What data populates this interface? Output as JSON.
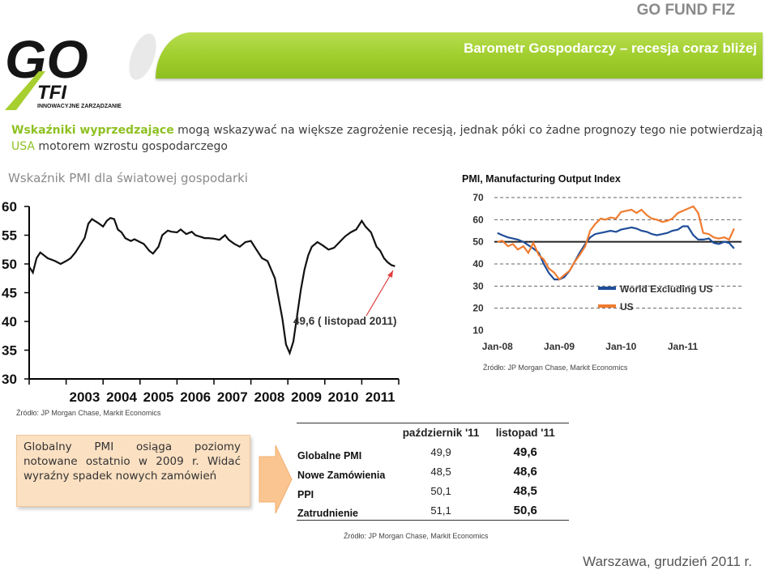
{
  "header": {
    "brand": "GO FUND FIZ",
    "banner_title": "Barometr Gospodarczy – recesja coraz bliżej"
  },
  "logo": {
    "main": "GO",
    "sub": "TFI",
    "tagline": "INNOWACYJNE ZARZĄDZANIE"
  },
  "intro": {
    "lead_highlight": "Wskaźniki wyprzedzające",
    "lead_rest": " mogą wskazywać na większe zagrożenie recesją, jednak póki co żadne prognozy tego nie potwierdzają ",
    "usa": "USA",
    "tail": " motorem wzrostu gospodarczego"
  },
  "subtitle": "Wskaźnik PMI dla światowej gospodarki",
  "chart_data": [
    {
      "type": "line",
      "xlabel": "",
      "ylabel": "",
      "ylim": [
        30,
        60
      ],
      "y_ticks": [
        "60",
        "55",
        "50",
        "45",
        "40",
        "35",
        "30"
      ],
      "x_ticks": [
        "2003",
        "2004",
        "2005",
        "2006",
        "2007",
        "2008",
        "2009",
        "2010",
        "2011"
      ],
      "annotation": "49,6 ( listopad 2011)",
      "source": "Źródło: JP Morgan Chase, Markit Economics",
      "series": [
        {
          "x": [
            2002.0,
            2002.1,
            2002.2,
            2002.3,
            2002.5,
            2002.7,
            2002.85,
            2003.0,
            2003.12,
            2003.25,
            2003.35,
            2003.5,
            2003.6,
            2003.7,
            2003.85,
            2004.0,
            2004.1,
            2004.2,
            2004.3,
            2004.4,
            2004.5,
            2004.6,
            2004.75,
            2004.85,
            2005.0,
            2005.1,
            2005.25,
            2005.35,
            2005.5,
            2005.6,
            2005.75,
            2005.85,
            2006.0,
            2006.1,
            2006.25,
            2006.4,
            2006.5,
            2006.6,
            2006.75,
            2006.85,
            2007.0,
            2007.15,
            2007.3,
            2007.4,
            2007.55,
            2007.7,
            2007.85,
            2008.0,
            2008.15,
            2008.3,
            2008.45,
            2008.55,
            2008.65,
            2008.75,
            2008.85,
            2008.95,
            2009.05,
            2009.15,
            2009.25,
            2009.35,
            2009.45,
            2009.55,
            2009.65,
            2009.8,
            2009.95,
            2010.1,
            2010.25,
            2010.4,
            2010.55,
            2010.7,
            2010.85,
            2011.0,
            2011.1,
            2011.25,
            2011.4,
            2011.5,
            2011.6,
            2011.7,
            2011.8,
            2011.9
          ],
          "y": [
            49.5,
            48.5,
            51,
            52,
            51,
            50.5,
            50,
            50.5,
            51,
            52,
            53,
            54.5,
            57,
            57.8,
            57.2,
            56.5,
            57.5,
            58,
            57.8,
            56,
            55.5,
            54.5,
            54,
            54.3,
            53.8,
            53.5,
            52.3,
            51.8,
            53,
            55,
            55.8,
            55.6,
            55.5,
            56,
            55.2,
            55.6,
            55,
            54.8,
            54.5,
            54.5,
            54.4,
            54.2,
            55,
            54.2,
            53.5,
            53,
            53.8,
            54,
            52.5,
            51,
            50.5,
            49,
            47.5,
            44,
            40.5,
            36,
            34.5,
            36.5,
            41,
            45.5,
            49,
            51.5,
            53,
            53.8,
            53.2,
            52.5,
            52.8,
            53.8,
            54.8,
            55.5,
            56,
            57.5,
            56.5,
            55.5,
            53,
            52.3,
            51,
            50.3,
            49.8,
            49.6
          ]
        }
      ]
    },
    {
      "type": "line",
      "title": "PMI, Manufacturing Output Index",
      "ylim": [
        10,
        70
      ],
      "y_ticks": [
        "70",
        "60",
        "50",
        "40",
        "30",
        "20",
        "10"
      ],
      "x_ticks": [
        "Jan-08",
        "Jan-09",
        "Jan-10",
        "Jan-11"
      ],
      "grid": "dashed horizontal",
      "reference_line": 50,
      "legend_position": "lower-right",
      "source": "Źródło: JP Morgan Chase, Markit Economics",
      "series": [
        {
          "name": "World Excluding US",
          "color": "#1f4e99",
          "x": [
            2008.0,
            2008.08,
            2008.17,
            2008.25,
            2008.33,
            2008.42,
            2008.5,
            2008.58,
            2008.67,
            2008.75,
            2008.83,
            2008.92,
            2009.0,
            2009.08,
            2009.17,
            2009.25,
            2009.33,
            2009.42,
            2009.5,
            2009.58,
            2009.67,
            2009.75,
            2009.83,
            2009.92,
            2010.0,
            2010.08,
            2010.17,
            2010.25,
            2010.33,
            2010.42,
            2010.5,
            2010.58,
            2010.67,
            2010.75,
            2010.83,
            2010.92,
            2011.0,
            2011.08,
            2011.17,
            2011.25,
            2011.33,
            2011.42,
            2011.5,
            2011.58,
            2011.67,
            2011.75,
            2011.83
          ],
          "y": [
            54,
            53,
            52,
            51.5,
            51,
            50,
            48.5,
            47,
            45,
            40,
            36,
            33,
            33,
            34,
            37,
            41,
            45,
            49,
            52,
            53.5,
            54,
            54.5,
            55,
            54.5,
            55.5,
            56,
            56.5,
            56,
            55,
            54.5,
            53.5,
            53,
            53.5,
            54,
            55,
            55.5,
            57,
            57,
            53,
            51,
            51,
            51.5,
            49.5,
            49,
            50,
            49.5,
            47
          ]
        },
        {
          "name": "US",
          "color": "#f07c30",
          "x": [
            2008.0,
            2008.08,
            2008.17,
            2008.25,
            2008.33,
            2008.42,
            2008.5,
            2008.58,
            2008.67,
            2008.75,
            2008.83,
            2008.92,
            2009.0,
            2009.08,
            2009.17,
            2009.25,
            2009.33,
            2009.42,
            2009.5,
            2009.58,
            2009.67,
            2009.75,
            2009.83,
            2009.92,
            2010.0,
            2010.08,
            2010.17,
            2010.25,
            2010.33,
            2010.42,
            2010.5,
            2010.58,
            2010.67,
            2010.75,
            2010.83,
            2010.92,
            2011.0,
            2011.08,
            2011.17,
            2011.25,
            2011.33,
            2011.42,
            2011.5,
            2011.58,
            2011.67,
            2011.75,
            2011.83
          ],
          "y": [
            50,
            50.5,
            48,
            49,
            46.5,
            48,
            45,
            49.5,
            44,
            42,
            38,
            36,
            33,
            35,
            37,
            41,
            44,
            48,
            55,
            58,
            60.5,
            60,
            61,
            60.5,
            63.5,
            64,
            64.5,
            63,
            64.5,
            62,
            60.5,
            60,
            59,
            59.5,
            60.5,
            63,
            64,
            65,
            66,
            63,
            54,
            53.5,
            52,
            51.5,
            52,
            51,
            56
          ]
        }
      ]
    }
  ],
  "bullets": {
    "text": "Globalny PMI osiąga poziomy notowane ostatnio w 2009 r. Widać wyraźny spadek nowych zamówień"
  },
  "table": {
    "headers": [
      "październik '11",
      "listopad '11"
    ],
    "rows": [
      {
        "label": "Globalne PMI",
        "oct": "49,9",
        "nov": "49,6"
      },
      {
        "label": "Nowe Zamówienia",
        "oct": "48,5",
        "nov": "48,6"
      },
      {
        "label": "PPI",
        "oct": "50,1",
        "nov": "48,5"
      },
      {
        "label": "Zatrudnienie",
        "oct": "51,1",
        "nov": "50,6"
      }
    ],
    "source": "Źródło: JP Morgan Chase, Markit Economics"
  },
  "footer": "Warszawa, grudzień 2011 r.",
  "colors": {
    "green": "#8ec122",
    "orange": "#f07c30",
    "blue": "#1f4e99",
    "arrow": "#fbc591",
    "annotation_arrow": "#e04040"
  }
}
